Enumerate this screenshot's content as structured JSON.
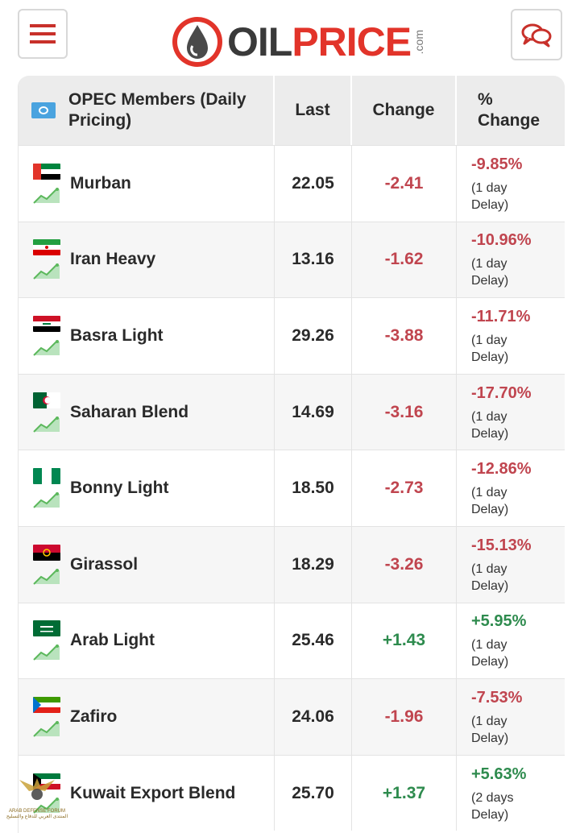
{
  "header": {
    "logo_oil": "OIL",
    "logo_price": "PRICE",
    "logo_com": ".com",
    "menu_icon": "hamburger-icon",
    "chat_icon": "chat-bubbles-icon"
  },
  "table": {
    "columns": [
      "OPEC Members (Daily Pricing)",
      "Last",
      "Change",
      "% Change"
    ],
    "col_pct_line1": "%",
    "col_pct_line2": "Change",
    "rows": [
      {
        "name": "Murban",
        "last": "22.05",
        "change": "-2.41",
        "pct": "-9.85%",
        "delay": "(1 day Delay)",
        "dir": "neg",
        "flag": "uae"
      },
      {
        "name": "Iran Heavy",
        "last": "13.16",
        "change": "-1.62",
        "pct": "-10.96%",
        "delay": "(1 day Delay)",
        "dir": "neg",
        "flag": "iran"
      },
      {
        "name": "Basra Light",
        "last": "29.26",
        "change": "-3.88",
        "pct": "-11.71%",
        "delay": "(1 day Delay)",
        "dir": "neg",
        "flag": "iraq"
      },
      {
        "name": "Saharan Blend",
        "last": "14.69",
        "change": "-3.16",
        "pct": "-17.70%",
        "delay": "(1 day Delay)",
        "dir": "neg",
        "flag": "algeria"
      },
      {
        "name": "Bonny Light",
        "last": "18.50",
        "change": "-2.73",
        "pct": "-12.86%",
        "delay": "(1 day Delay)",
        "dir": "neg",
        "flag": "nigeria"
      },
      {
        "name": "Girassol",
        "last": "18.29",
        "change": "-3.26",
        "pct": "-15.13%",
        "delay": "(1 day Delay)",
        "dir": "neg",
        "flag": "angola"
      },
      {
        "name": "Arab Light",
        "last": "25.46",
        "change": "+1.43",
        "pct": "+5.95%",
        "delay": "(1 day Delay)",
        "dir": "pos",
        "flag": "saudi"
      },
      {
        "name": "Zafiro",
        "last": "24.06",
        "change": "-1.96",
        "pct": "-7.53%",
        "delay": "(1 day Delay)",
        "dir": "neg",
        "flag": "eqguinea"
      },
      {
        "name": "Kuwait Export Blend",
        "last": "25.70",
        "change": "+1.37",
        "pct": "+5.63%",
        "delay": "(2 days Delay)",
        "dir": "pos",
        "flag": "kuwait"
      }
    ]
  },
  "watermark": {
    "line1": "ARAB DEFENSE FORUM",
    "line2": "المنتدى العربي للدفاع والتسليح"
  },
  "colors": {
    "negative": "#c0454f",
    "positive": "#2e8b4e",
    "brand_red": "#e2342a",
    "header_bg": "#ececec"
  }
}
